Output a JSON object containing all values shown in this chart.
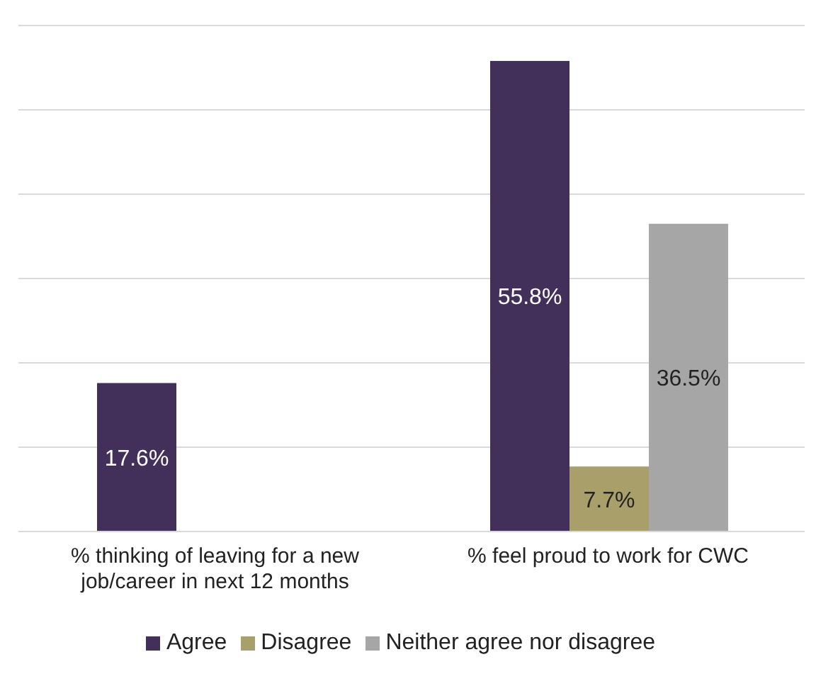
{
  "chart_data": {
    "type": "bar",
    "categories": [
      "% thinking of leaving for a new job/career in next 12 months",
      "% feel proud to work for CWC"
    ],
    "series": [
      {
        "name": "Agree",
        "color": "#43305a",
        "values": [
          17.6,
          55.8
        ],
        "value_labels": [
          "17.6%",
          "55.8%"
        ]
      },
      {
        "name": "Disagree",
        "color": "#a89f6a",
        "values": [
          null,
          7.7
        ],
        "value_labels": [
          null,
          "7.7%"
        ]
      },
      {
        "name": "Neither agree nor disagree",
        "color": "#a6a6a6",
        "values": [
          null,
          36.5
        ],
        "value_labels": [
          null,
          "36.5%"
        ]
      }
    ],
    "ylim": [
      0,
      60
    ],
    "yticks": [
      {
        "value": 0,
        "label": null
      },
      {
        "value": 10,
        "label": null
      },
      {
        "value": 20,
        "label": null
      },
      {
        "value": 30,
        "label": null
      },
      {
        "value": 40,
        "label": null
      },
      {
        "value": 50,
        "label": null
      },
      {
        "value": 60,
        "label": null
      }
    ],
    "grid": "y",
    "legend": "bottom",
    "tick_labels": "x"
  }
}
